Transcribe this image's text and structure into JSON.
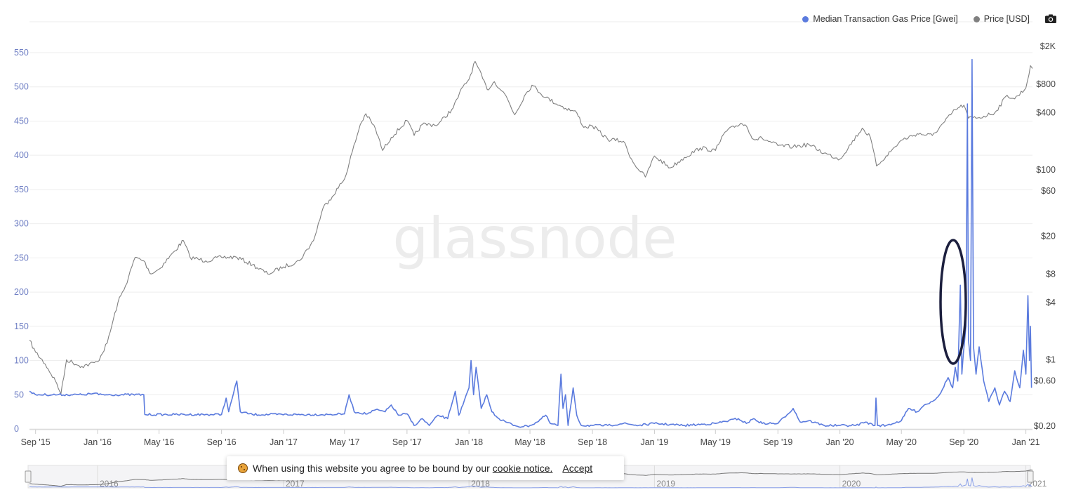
{
  "legend": {
    "gas_label": "Median Transaction Gas Price [Gwei]",
    "price_label": "Price [USD]",
    "gas_color": "#5b7bde",
    "price_color": "#808080"
  },
  "watermark": "glassnode",
  "cookie": {
    "text": "When using this website you agree to be bound by our",
    "link": "cookie notice.",
    "accept": "Accept"
  },
  "navigator": {
    "year_labels": [
      "2016",
      "2017",
      "2018",
      "2019",
      "2020",
      "2021"
    ]
  },
  "chart_data": {
    "type": "line",
    "x_tick_labels": [
      "Sep '15",
      "Jan '16",
      "May '16",
      "Sep '16",
      "Jan '17",
      "May '17",
      "Sep '17",
      "Jan '18",
      "May '18",
      "Sep '18",
      "Jan '19",
      "May '19",
      "Sep '19",
      "Jan '20",
      "May '20",
      "Sep '20",
      "Jan '21"
    ],
    "y_left": {
      "ticks": [
        0,
        50,
        100,
        150,
        200,
        250,
        300,
        350,
        400,
        450,
        500,
        550
      ],
      "range": [
        0,
        550
      ]
    },
    "y_right": {
      "scale": "log",
      "tick_labels": [
        "$0.20",
        "$0.60",
        "$1",
        "$4",
        "$8",
        "$20",
        "$60",
        "$100",
        "$400",
        "$800",
        "$2K"
      ],
      "tick_values": [
        0.2,
        0.6,
        1,
        4,
        8,
        20,
        60,
        100,
        400,
        800,
        2000
      ]
    },
    "series": [
      {
        "name": "Median Transaction Gas Price [Gwei]",
        "axis": "left",
        "points": [
          [
            "2015-08-20",
            55
          ],
          [
            "2015-08-25",
            52
          ],
          [
            "2015-09-01",
            50
          ],
          [
            "2015-12-01",
            50
          ],
          [
            "2016-01-01",
            52
          ],
          [
            "2016-01-03",
            50
          ],
          [
            "2016-04-01",
            50
          ],
          [
            "2016-04-03",
            21
          ],
          [
            "2016-06-01",
            21
          ],
          [
            "2016-09-01",
            21
          ],
          [
            "2016-09-10",
            45
          ],
          [
            "2016-09-15",
            25
          ],
          [
            "2016-10-01",
            70
          ],
          [
            "2016-10-08",
            25
          ],
          [
            "2016-11-01",
            21
          ],
          [
            "2017-04-01",
            21
          ],
          [
            "2017-05-01",
            22
          ],
          [
            "2017-05-10",
            50
          ],
          [
            "2017-05-20",
            25
          ],
          [
            "2017-06-15",
            22
          ],
          [
            "2017-07-01",
            28
          ],
          [
            "2017-07-20",
            25
          ],
          [
            "2017-08-01",
            35
          ],
          [
            "2017-08-15",
            20
          ],
          [
            "2017-09-01",
            22
          ],
          [
            "2017-09-15",
            5
          ],
          [
            "2017-10-01",
            15
          ],
          [
            "2017-10-15",
            5
          ],
          [
            "2017-11-01",
            20
          ],
          [
            "2017-11-20",
            15
          ],
          [
            "2017-12-05",
            55
          ],
          [
            "2017-12-12",
            20
          ],
          [
            "2017-12-20",
            35
          ],
          [
            "2018-01-01",
            60
          ],
          [
            "2018-01-05",
            100
          ],
          [
            "2018-01-10",
            50
          ],
          [
            "2018-01-15",
            90
          ],
          [
            "2018-01-25",
            30
          ],
          [
            "2018-02-05",
            50
          ],
          [
            "2018-02-15",
            25
          ],
          [
            "2018-03-01",
            15
          ],
          [
            "2018-03-15",
            10
          ],
          [
            "2018-04-01",
            5
          ],
          [
            "2018-04-15",
            3
          ],
          [
            "2018-05-01",
            5
          ],
          [
            "2018-05-15",
            10
          ],
          [
            "2018-06-01",
            20
          ],
          [
            "2018-06-10",
            8
          ],
          [
            "2018-06-25",
            5
          ],
          [
            "2018-07-01",
            80
          ],
          [
            "2018-07-05",
            30
          ],
          [
            "2018-07-10",
            50
          ],
          [
            "2018-07-15",
            5
          ],
          [
            "2018-07-25",
            60
          ],
          [
            "2018-08-01",
            20
          ],
          [
            "2018-08-10",
            5
          ],
          [
            "2018-09-01",
            5
          ],
          [
            "2018-10-01",
            5
          ],
          [
            "2018-11-01",
            8
          ],
          [
            "2018-12-01",
            5
          ],
          [
            "2019-01-01",
            8
          ],
          [
            "2019-03-01",
            5
          ],
          [
            "2019-05-01",
            8
          ],
          [
            "2019-06-15",
            15
          ],
          [
            "2019-07-01",
            8
          ],
          [
            "2019-07-15",
            15
          ],
          [
            "2019-08-01",
            8
          ],
          [
            "2019-09-01",
            8
          ],
          [
            "2019-10-01",
            30
          ],
          [
            "2019-10-15",
            10
          ],
          [
            "2019-11-01",
            12
          ],
          [
            "2019-12-01",
            5
          ],
          [
            "2020-01-01",
            5
          ],
          [
            "2020-02-01",
            5
          ],
          [
            "2020-02-20",
            10
          ],
          [
            "2020-03-10",
            5
          ],
          [
            "2020-03-12",
            45
          ],
          [
            "2020-03-15",
            5
          ],
          [
            "2020-04-01",
            5
          ],
          [
            "2020-05-01",
            12
          ],
          [
            "2020-05-15",
            30
          ],
          [
            "2020-06-01",
            25
          ],
          [
            "2020-06-15",
            35
          ],
          [
            "2020-07-01",
            40
          ],
          [
            "2020-07-15",
            50
          ],
          [
            "2020-08-01",
            75
          ],
          [
            "2020-08-10",
            60
          ],
          [
            "2020-08-15",
            90
          ],
          [
            "2020-08-20",
            70
          ],
          [
            "2020-08-25",
            210
          ],
          [
            "2020-08-28",
            80
          ],
          [
            "2020-08-31",
            110
          ],
          [
            "2020-09-05",
            150
          ],
          [
            "2020-09-08",
            475
          ],
          [
            "2020-09-10",
            130
          ],
          [
            "2020-09-14",
            100
          ],
          [
            "2020-09-17",
            540
          ],
          [
            "2020-09-20",
            120
          ],
          [
            "2020-09-25",
            80
          ],
          [
            "2020-10-01",
            120
          ],
          [
            "2020-10-10",
            70
          ],
          [
            "2020-10-20",
            40
          ],
          [
            "2020-11-01",
            60
          ],
          [
            "2020-11-10",
            35
          ],
          [
            "2020-11-20",
            55
          ],
          [
            "2020-12-01",
            40
          ],
          [
            "2020-12-10",
            85
          ],
          [
            "2020-12-20",
            60
          ],
          [
            "2020-12-27",
            115
          ],
          [
            "2021-01-01",
            80
          ],
          [
            "2021-01-05",
            195
          ],
          [
            "2021-01-08",
            100
          ],
          [
            "2021-01-10",
            150
          ],
          [
            "2021-01-12",
            60
          ]
        ]
      },
      {
        "name": "Price [USD]",
        "axis": "right",
        "points": [
          [
            "2015-08-20",
            1.6
          ],
          [
            "2015-09-01",
            1.2
          ],
          [
            "2015-09-20",
            0.9
          ],
          [
            "2015-10-10",
            0.6
          ],
          [
            "2015-10-21",
            0.44
          ],
          [
            "2015-11-01",
            1.0
          ],
          [
            "2015-12-01",
            0.85
          ],
          [
            "2016-01-01",
            0.95
          ],
          [
            "2016-01-20",
            1.5
          ],
          [
            "2016-02-10",
            4
          ],
          [
            "2016-02-25",
            6
          ],
          [
            "2016-03-15",
            12
          ],
          [
            "2016-04-01",
            11
          ],
          [
            "2016-04-15",
            8
          ],
          [
            "2016-05-01",
            9
          ],
          [
            "2016-06-01",
            14
          ],
          [
            "2016-06-18",
            18
          ],
          [
            "2016-07-01",
            12
          ],
          [
            "2016-08-01",
            11
          ],
          [
            "2016-09-01",
            12
          ],
          [
            "2016-10-01",
            12
          ],
          [
            "2016-11-01",
            10
          ],
          [
            "2016-12-01",
            8
          ],
          [
            "2017-01-01",
            9.5
          ],
          [
            "2017-02-01",
            11
          ],
          [
            "2017-03-01",
            18
          ],
          [
            "2017-03-20",
            40
          ],
          [
            "2017-04-01",
            48
          ],
          [
            "2017-05-01",
            80
          ],
          [
            "2017-06-01",
            300
          ],
          [
            "2017-06-12",
            390
          ],
          [
            "2017-07-01",
            270
          ],
          [
            "2017-07-15",
            160
          ],
          [
            "2017-08-01",
            220
          ],
          [
            "2017-09-01",
            330
          ],
          [
            "2017-09-15",
            230
          ],
          [
            "2017-10-01",
            300
          ],
          [
            "2017-11-01",
            300
          ],
          [
            "2017-12-01",
            450
          ],
          [
            "2017-12-20",
            750
          ],
          [
            "2018-01-01",
            900
          ],
          [
            "2018-01-13",
            1390
          ],
          [
            "2018-02-06",
            700
          ],
          [
            "2018-02-20",
            850
          ],
          [
            "2018-03-15",
            600
          ],
          [
            "2018-04-01",
            380
          ],
          [
            "2018-04-20",
            600
          ],
          [
            "2018-05-05",
            780
          ],
          [
            "2018-06-01",
            580
          ],
          [
            "2018-07-01",
            470
          ],
          [
            "2018-08-01",
            400
          ],
          [
            "2018-08-15",
            280
          ],
          [
            "2018-09-01",
            290
          ],
          [
            "2018-10-01",
            210
          ],
          [
            "2018-11-01",
            200
          ],
          [
            "2018-11-20",
            120
          ],
          [
            "2018-12-14",
            84
          ],
          [
            "2019-01-01",
            140
          ],
          [
            "2019-02-01",
            105
          ],
          [
            "2019-03-01",
            135
          ],
          [
            "2019-04-01",
            170
          ],
          [
            "2019-05-01",
            160
          ],
          [
            "2019-05-20",
            250
          ],
          [
            "2019-06-20",
            310
          ],
          [
            "2019-07-01",
            290
          ],
          [
            "2019-07-15",
            210
          ],
          [
            "2019-08-01",
            215
          ],
          [
            "2019-09-01",
            180
          ],
          [
            "2019-10-01",
            175
          ],
          [
            "2019-11-01",
            185
          ],
          [
            "2019-12-01",
            150
          ],
          [
            "2020-01-01",
            130
          ],
          [
            "2020-02-14",
            275
          ],
          [
            "2020-03-01",
            220
          ],
          [
            "2020-03-13",
            110
          ],
          [
            "2020-04-01",
            140
          ],
          [
            "2020-05-01",
            205
          ],
          [
            "2020-06-01",
            240
          ],
          [
            "2020-07-01",
            230
          ],
          [
            "2020-07-25",
            320
          ],
          [
            "2020-08-15",
            430
          ],
          [
            "2020-09-01",
            480
          ],
          [
            "2020-09-10",
            350
          ],
          [
            "2020-10-01",
            355
          ],
          [
            "2020-11-01",
            400
          ],
          [
            "2020-11-25",
            610
          ],
          [
            "2020-12-10",
            560
          ],
          [
            "2021-01-01",
            730
          ],
          [
            "2021-01-10",
            1250
          ],
          [
            "2021-01-14",
            1170
          ]
        ]
      }
    ]
  }
}
